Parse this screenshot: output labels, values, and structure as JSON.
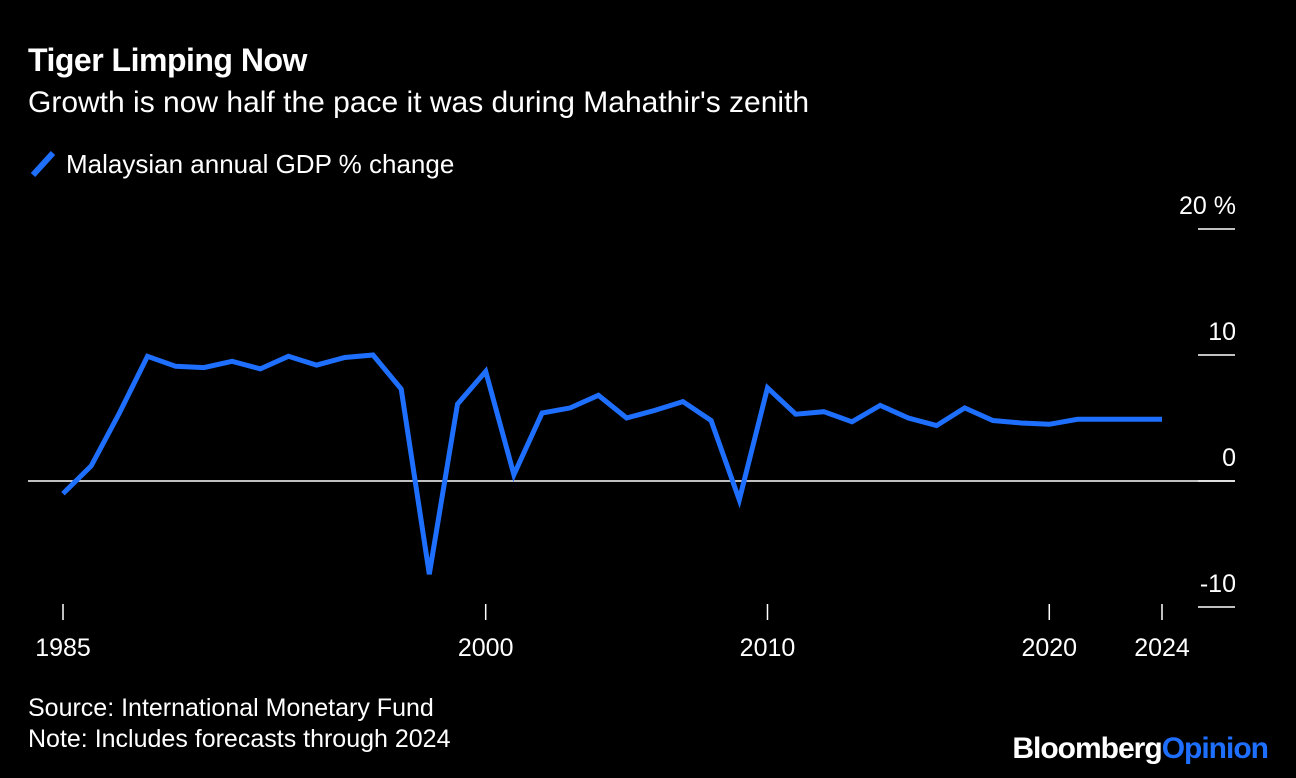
{
  "header": {
    "title": "Tiger Limping Now",
    "subtitle": "Growth is now half the pace it was during Mahathir's zenith"
  },
  "footer": {
    "source": "Source: International Monetary Fund",
    "note": "Note: Includes forecasts through 2024",
    "brand_part1": "Bloomberg",
    "brand_part2": "Opinion"
  },
  "colors": {
    "line": "#1f6fff",
    "background": "#000000",
    "axis": "#ffffff"
  },
  "chart_data": {
    "type": "line",
    "title": "Tiger Limping Now",
    "subtitle": "Growth is now half the pace it was during Mahathir's zenith",
    "xlabel": "",
    "ylabel": "",
    "ylim": [
      -10,
      20
    ],
    "xlim": [
      1985,
      2024
    ],
    "yticks": [
      {
        "value": 20,
        "label": "20 %"
      },
      {
        "value": 10,
        "label": "10"
      },
      {
        "value": 0,
        "label": "0"
      },
      {
        "value": -10,
        "label": "-10"
      }
    ],
    "xticks": [
      {
        "value": 1985,
        "label": "1985"
      },
      {
        "value": 2000,
        "label": "2000"
      },
      {
        "value": 2010,
        "label": "2010"
      },
      {
        "value": 2020,
        "label": "2020"
      },
      {
        "value": 2024,
        "label": "2024"
      }
    ],
    "grid": false,
    "legend_position": "top-left",
    "series": [
      {
        "name": "Malaysian annual GDP % change",
        "color": "#1f6fff",
        "x": [
          1985,
          1986,
          1987,
          1988,
          1989,
          1990,
          1991,
          1992,
          1993,
          1994,
          1995,
          1996,
          1997,
          1998,
          1999,
          2000,
          2001,
          2002,
          2003,
          2004,
          2005,
          2006,
          2007,
          2008,
          2009,
          2010,
          2011,
          2012,
          2013,
          2014,
          2015,
          2016,
          2017,
          2018,
          2019,
          2020,
          2021,
          2022,
          2023,
          2024
        ],
        "values": [
          -1.0,
          1.2,
          5.4,
          9.9,
          9.1,
          9.0,
          9.5,
          8.9,
          9.9,
          9.2,
          9.8,
          10.0,
          7.3,
          -7.4,
          6.1,
          8.7,
          0.5,
          5.4,
          5.8,
          6.8,
          5.0,
          5.6,
          6.3,
          4.8,
          -1.5,
          7.4,
          5.3,
          5.5,
          4.7,
          6.0,
          5.0,
          4.4,
          5.8,
          4.8,
          4.6,
          4.5,
          4.9,
          4.9,
          4.9,
          4.9
        ]
      }
    ]
  }
}
